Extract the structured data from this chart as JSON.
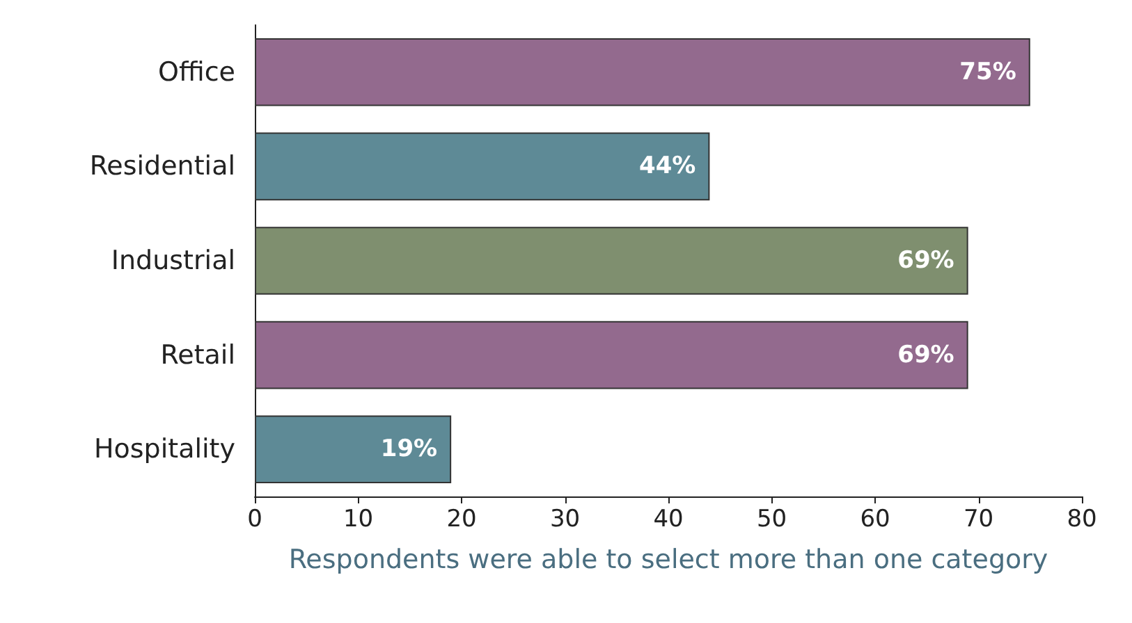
{
  "chart_data": {
    "type": "bar",
    "orientation": "horizontal",
    "categories": [
      "Office",
      "Residential",
      "Industrial",
      "Retail",
      "Hospitality"
    ],
    "values": [
      75,
      44,
      69,
      69,
      19
    ],
    "colors": [
      "#936a8e",
      "#5e8a96",
      "#7f8f6f",
      "#936a8e",
      "#5e8a96"
    ],
    "value_labels": [
      "75%",
      "44%",
      "69%",
      "69%",
      "19%"
    ],
    "xlim": [
      0,
      80
    ],
    "xticks": [
      0,
      10,
      20,
      30,
      40,
      50,
      60,
      70,
      80
    ],
    "xlabel": "Respondents were able to select more than one category"
  }
}
